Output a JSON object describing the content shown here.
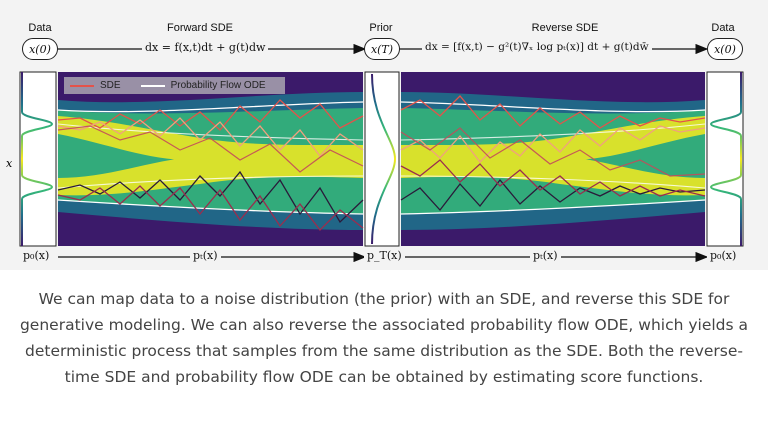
{
  "diagram": {
    "headers": {
      "data_left": "Data",
      "forward": "Forward SDE",
      "prior": "Prior",
      "reverse": "Reverse SDE",
      "data_right": "Data"
    },
    "nodes": {
      "x0_left": "x(0)",
      "xT": "x(T)",
      "x0_right": "x(0)"
    },
    "equations": {
      "forward": "dx = f(x,t)dt + g(t)dw",
      "reverse": "dx = [f(x,t) − g²(t)∇ₓ log pₜ(x)] dt + g(t)dw̄"
    },
    "axis": {
      "y_label": "x",
      "p0_left": "p₀(x)",
      "pt_left": "pₜ(x)",
      "pT": "p_T(x)",
      "pt_right": "pₜ(x)",
      "p0_right": "p₀(x)"
    },
    "legend": {
      "sde": "SDE",
      "ode": "Probability Flow ODE"
    },
    "colors": {
      "sde": "#e4524a",
      "ode": "#ffffff",
      "density_high": "#f6ea1f",
      "density_low": "#3b1a6a"
    }
  },
  "caption": "We can map data to a noise distribution (the prior) with an SDE, and reverse this SDE for generative modeling. We can also reverse the associated probability flow ODE, which yields a deterministic process that samples from the same distribution as the SDE. Both the reverse-time SDE and probability flow ODE can be obtained by estimating score functions."
}
